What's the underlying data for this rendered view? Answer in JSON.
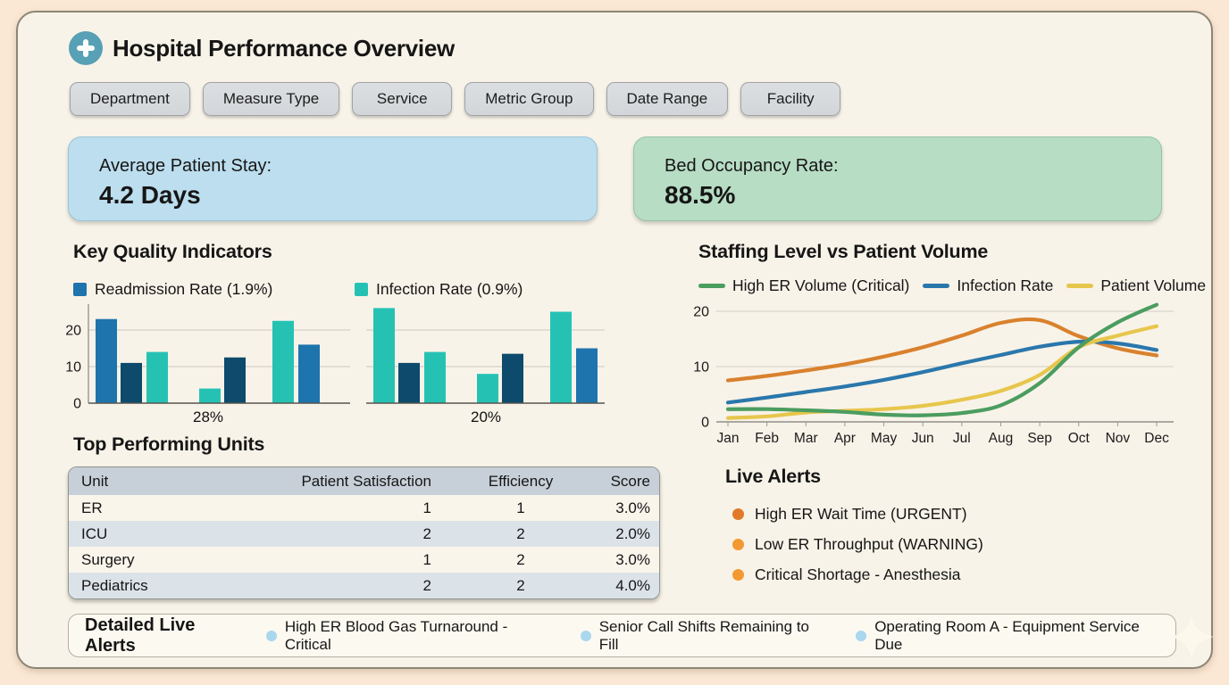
{
  "colors": {
    "page_bg": "#fbe8d4",
    "panel_bg": "#f8f3e8",
    "panel_border": "#8c8576",
    "brand_teal": "#57a0b5",
    "bar_blue": "#1e74ad",
    "bar_navy": "#0d4a6c",
    "bar_teal": "#25c2b4",
    "line_orange": "#d9812e",
    "line_blue": "#2a77ac",
    "line_yellow": "#e7c64d",
    "line_green": "#4b9d60",
    "alert_orange_dark": "#e2792a",
    "alert_orange": "#f29a31",
    "detail_blue": "#a9d7ee",
    "kpi_blue_bg": "#bcdeee",
    "kpi_green_bg": "#b7ddc4"
  },
  "header": {
    "title": "Hospital Performance Overview"
  },
  "filters": [
    {
      "label": "Department"
    },
    {
      "label": "Measure Type"
    },
    {
      "label": "Service"
    },
    {
      "label": "Metric Group"
    },
    {
      "label": "Date Range"
    },
    {
      "label": "Facility"
    }
  ],
  "kpis": [
    {
      "label": "Average Patient Stay:",
      "value": "4.2 Days"
    },
    {
      "label": "Bed Occupancy Rate:",
      "value": "88.5%"
    }
  ],
  "quality_section": {
    "title": "Key Quality Indicators",
    "legends": [
      {
        "label": "Readmission Rate (1.9%)",
        "color": "bar_blue"
      },
      {
        "label": "Infection Rate (0.9%)",
        "color": "bar_teal"
      }
    ]
  },
  "staffing_section": {
    "title": "Staffing Level vs Patient Volume"
  },
  "chart_data": [
    {
      "type": "bar",
      "title": "Readmission Rate (1.9%)",
      "values": [
        23,
        11,
        14,
        4,
        12.5,
        22.5,
        16
      ],
      "bar_colors": [
        "bar_blue",
        "bar_navy",
        "bar_teal",
        "bar_teal",
        "bar_navy",
        "bar_teal",
        "bar_blue"
      ],
      "yticks": [
        0,
        10,
        20
      ],
      "ylim": [
        0,
        27
      ],
      "xlabel": "28%",
      "grid": true
    },
    {
      "type": "bar",
      "title": "Infection Rate (0.9%)",
      "values": [
        26,
        11,
        14,
        8,
        13.5,
        25,
        15
      ],
      "bar_colors": [
        "bar_teal",
        "bar_navy",
        "bar_teal",
        "bar_teal",
        "bar_navy",
        "bar_teal",
        "bar_blue"
      ],
      "yticks": [
        10,
        20
      ],
      "ylim": [
        0,
        27
      ],
      "xlabel": "20%",
      "grid": true
    },
    {
      "type": "line",
      "title": "Staffing Level vs Patient Volume",
      "x": [
        "Jan",
        "Feb",
        "Mar",
        "Apr",
        "May",
        "Jun",
        "Jul",
        "Aug",
        "Sep",
        "Oct",
        "Nov",
        "Dec"
      ],
      "yticks": [
        0,
        10,
        20
      ],
      "ylim": [
        0,
        22
      ],
      "legend_position": "top",
      "grid": true,
      "series": [
        {
          "name": "unlabeled-orange",
          "color": "line_orange",
          "in_legend": false,
          "values": [
            7.5,
            8.3,
            9.3,
            10.4,
            11.8,
            13.5,
            15.6,
            17.9,
            18.4,
            15.5,
            13.3,
            12.0
          ]
        },
        {
          "name": "Infection Rate",
          "color": "line_blue",
          "in_legend": true,
          "values": [
            3.5,
            4.4,
            5.4,
            6.4,
            7.6,
            9.0,
            10.6,
            12.1,
            13.6,
            14.5,
            14.2,
            13.0
          ]
        },
        {
          "name": "Patient Volume",
          "color": "line_yellow",
          "in_legend": true,
          "values": [
            0.7,
            1.0,
            1.7,
            2.0,
            2.3,
            2.9,
            4.0,
            5.6,
            8.5,
            13.5,
            15.6,
            17.3
          ]
        },
        {
          "name": "High ER Volume  (Critical)",
          "color": "line_green",
          "in_legend": true,
          "values": [
            2.3,
            2.3,
            2.1,
            1.8,
            1.3,
            1.2,
            1.6,
            3.0,
            7.0,
            13.5,
            18.0,
            21.2
          ]
        }
      ]
    }
  ],
  "units_table": {
    "title": "Top Performing Units",
    "columns": [
      "Unit",
      "Patient Satisfaction",
      "Efficiency",
      "Score"
    ],
    "rows": [
      [
        "ER",
        "1",
        "1",
        "3.0%"
      ],
      [
        "ICU",
        "2",
        "2",
        "2.0%"
      ],
      [
        "Surgery",
        "1",
        "2",
        "3.0%"
      ],
      [
        "Pediatrics",
        "2",
        "2",
        "4.0%"
      ]
    ]
  },
  "live_alerts": {
    "title": "Live Alerts",
    "items": [
      {
        "text": "High ER Wait Time (URGENT)",
        "color": "alert_orange_dark"
      },
      {
        "text": "Low ER Throughput (WARNING)",
        "color": "alert_orange"
      },
      {
        "text": "Critical Shortage - Anesthesia",
        "color": "alert_orange"
      }
    ]
  },
  "detailed_alerts": {
    "title": "Detailed Live Alerts",
    "items": [
      {
        "text": "High ER Blood Gas Turnaround - Critical",
        "color": "detail_blue"
      },
      {
        "text": "Senior Call Shifts Remaining to Fill",
        "color": "detail_blue"
      },
      {
        "text": "Operating Room A - Equipment Service Due",
        "color": "detail_blue"
      }
    ]
  }
}
